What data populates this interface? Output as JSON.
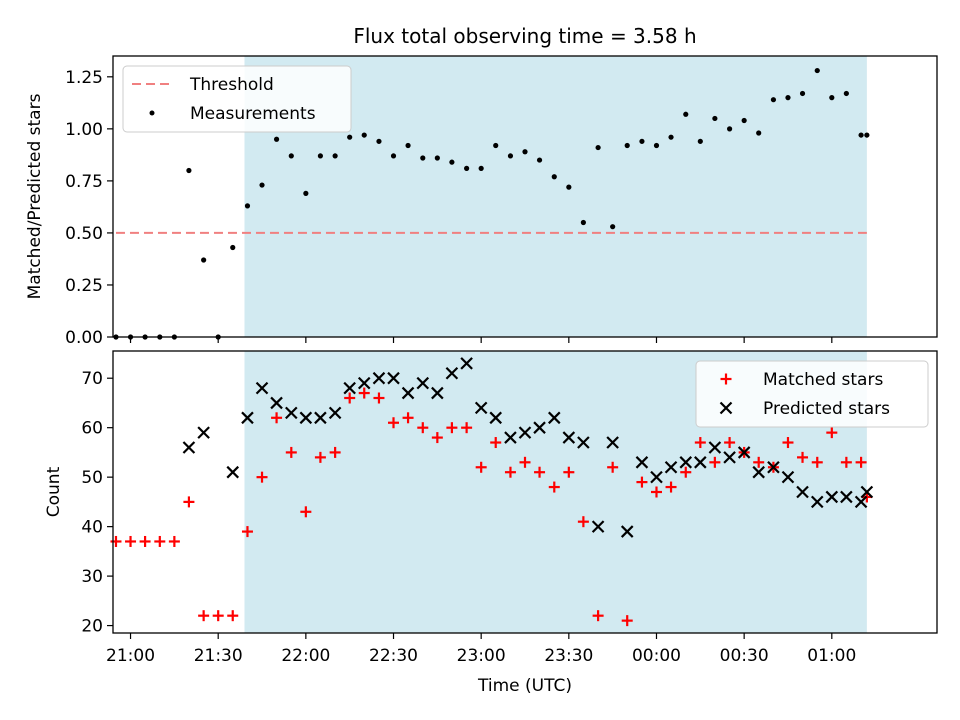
{
  "figure_title": "Flux total observing time = 3.58 h",
  "colors": {
    "observing_band": "#add8e6",
    "threshold": "#f08080",
    "measurements": "#000000",
    "matched": "#ff0000",
    "predicted": "#000000"
  },
  "chart_data": [
    {
      "type": "scatter",
      "title": "Flux total observing time = 3.58 h",
      "xlabel": "",
      "ylabel": "Matched/Predicted stars",
      "ylim": [
        0,
        1.35
      ],
      "yticks": [
        "0.00",
        "0.25",
        "0.50",
        "0.75",
        "1.00",
        "1.25"
      ],
      "ytick_values": [
        0,
        0.25,
        0.5,
        0.75,
        1.0,
        1.25
      ],
      "xlim": [
        -0.1,
        4.6
      ],
      "x_unit": "hours after 21:00 UTC",
      "observing_band": [
        0.65,
        4.2
      ],
      "legend": {
        "placement": "top-left",
        "entries": [
          "Threshold",
          "Measurements"
        ]
      },
      "threshold": {
        "name": "Threshold",
        "value": 0.5,
        "x_range": [
          -0.083,
          4.2
        ]
      },
      "series": [
        {
          "name": "Measurements",
          "marker": "dot",
          "x": [
            -0.083,
            0.0,
            0.083,
            0.167,
            0.25,
            0.333,
            0.417,
            0.5,
            0.583,
            0.667,
            0.75,
            0.833,
            0.917,
            1.0,
            1.083,
            1.167,
            1.25,
            1.333,
            1.417,
            1.5,
            1.583,
            1.667,
            1.75,
            1.833,
            1.917,
            2.0,
            2.083,
            2.167,
            2.25,
            2.333,
            2.417,
            2.5,
            2.583,
            2.667,
            2.75,
            2.833,
            2.917,
            3.0,
            3.083,
            3.167,
            3.25,
            3.333,
            3.417,
            3.5,
            3.583,
            3.667,
            3.75,
            3.833,
            3.917,
            4.0,
            4.083,
            4.167,
            4.2
          ],
          "y": [
            0.0,
            0.0,
            0.0,
            0.0,
            0.0,
            0.8,
            0.37,
            0.0,
            0.43,
            0.63,
            0.73,
            0.95,
            0.87,
            0.69,
            0.87,
            0.87,
            0.96,
            0.97,
            0.94,
            0.87,
            0.92,
            0.86,
            0.86,
            0.84,
            0.81,
            0.81,
            0.92,
            0.87,
            0.89,
            0.85,
            0.77,
            0.72,
            0.55,
            0.91,
            0.53,
            0.92,
            0.94,
            0.92,
            0.96,
            1.07,
            0.94,
            1.05,
            1.0,
            1.04,
            0.98,
            1.14,
            1.15,
            1.17,
            1.28,
            1.15,
            1.17,
            0.97,
            0.97
          ]
        }
      ]
    },
    {
      "type": "scatter",
      "title": "",
      "xlabel": "Time (UTC)",
      "ylabel": "Count",
      "ylim": [
        18.5,
        75.5
      ],
      "yticks": [
        "20",
        "30",
        "40",
        "50",
        "60",
        "70"
      ],
      "ytick_values": [
        20,
        30,
        40,
        50,
        60,
        70
      ],
      "xlim": [
        -0.1,
        4.6
      ],
      "x_unit": "hours after 21:00 UTC",
      "xticks": [
        "21:00",
        "21:30",
        "22:00",
        "22:30",
        "23:00",
        "23:30",
        "00:00",
        "00:30",
        "01:00"
      ],
      "xtick_values": [
        0,
        0.5,
        1.0,
        1.5,
        2.0,
        2.5,
        3.0,
        3.5,
        4.0
      ],
      "observing_band": [
        0.65,
        4.2
      ],
      "legend": {
        "placement": "top-right",
        "entries": [
          "Matched stars",
          "Predicted stars"
        ]
      },
      "series": [
        {
          "name": "Matched stars",
          "marker": "plus",
          "x": [
            -0.083,
            0.0,
            0.083,
            0.167,
            0.25,
            0.333,
            0.417,
            0.5,
            0.583,
            0.667,
            0.75,
            0.833,
            0.917,
            1.0,
            1.083,
            1.167,
            1.25,
            1.333,
            1.417,
            1.5,
            1.583,
            1.667,
            1.75,
            1.833,
            1.917,
            2.0,
            2.083,
            2.167,
            2.25,
            2.333,
            2.417,
            2.5,
            2.583,
            2.667,
            2.75,
            2.833,
            2.917,
            3.0,
            3.083,
            3.167,
            3.25,
            3.333,
            3.417,
            3.5,
            3.583,
            3.667,
            3.75,
            3.833,
            3.917,
            4.0,
            4.083,
            4.167,
            4.2
          ],
          "y": [
            37,
            37,
            37,
            37,
            37,
            45,
            22,
            22,
            22,
            39,
            50,
            62,
            55,
            43,
            54,
            55,
            66,
            67,
            66,
            61,
            62,
            60,
            58,
            60,
            60,
            52,
            57,
            51,
            53,
            51,
            48,
            51,
            41,
            22,
            52,
            21,
            49,
            47,
            48,
            51,
            57,
            53,
            57,
            55,
            53,
            52,
            57,
            54,
            53,
            59,
            53,
            53,
            46
          ]
        },
        {
          "name": "Predicted stars",
          "marker": "x",
          "x": [
            0.333,
            0.417,
            0.583,
            0.667,
            0.75,
            0.833,
            0.917,
            1.0,
            1.083,
            1.167,
            1.25,
            1.333,
            1.417,
            1.5,
            1.583,
            1.667,
            1.75,
            1.833,
            1.917,
            2.0,
            2.083,
            2.167,
            2.25,
            2.333,
            2.417,
            2.5,
            2.583,
            2.667,
            2.75,
            2.833,
            2.917,
            3.0,
            3.083,
            3.167,
            3.25,
            3.333,
            3.417,
            3.5,
            3.583,
            3.667,
            3.75,
            3.833,
            3.917,
            4.0,
            4.083,
            4.167,
            4.2
          ],
          "y": [
            56,
            59,
            51,
            62,
            68,
            65,
            63,
            62,
            62,
            63,
            68,
            69,
            70,
            70,
            67,
            69,
            67,
            71,
            73,
            64,
            62,
            58,
            59,
            60,
            62,
            58,
            57,
            40,
            57,
            39,
            53,
            50,
            52,
            53,
            53,
            56,
            54,
            55,
            51,
            52,
            50,
            47,
            45,
            46,
            46,
            45,
            47
          ]
        }
      ]
    }
  ]
}
